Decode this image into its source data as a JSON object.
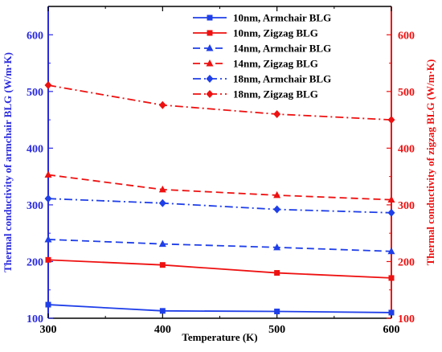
{
  "chart_data": {
    "type": "line",
    "x": [
      300,
      400,
      500,
      600
    ],
    "xlabel": "Temperature (K)",
    "ylabel_left": "Thermal conductivity of armchair BLG (W/m·K)",
    "ylabel_right": "Thermal conductivity of zigzag BLG (W/m·K)",
    "xlim": [
      300,
      600
    ],
    "ylim_left": [
      100,
      650
    ],
    "ylim_right": [
      100,
      650
    ],
    "x_ticks": [
      "300",
      "400",
      "500",
      "600"
    ],
    "y_ticks_left": [
      "100",
      "200",
      "300",
      "400",
      "500",
      "600"
    ],
    "y_ticks_right": [
      "100",
      "200",
      "300",
      "400",
      "500",
      "600"
    ],
    "grid": false,
    "legend_position": "top-right",
    "colors": {
      "left_axis": "#2a2adf",
      "right_axis": "#ee1111",
      "armchair": "#1f3fe8",
      "zigzag": "#ee1111"
    },
    "series": [
      {
        "name": "10nm, Armchair BLG",
        "axis": "left",
        "color": "#1f3fe8",
        "dash": "solid",
        "marker": "square",
        "values": [
          124,
          113,
          112,
          110
        ]
      },
      {
        "name": "10nm, Zigzag BLG",
        "axis": "right",
        "color": "#ee1111",
        "dash": "solid",
        "marker": "square",
        "values": [
          203,
          194,
          180,
          171
        ]
      },
      {
        "name": "14nm, Armchair BLG",
        "axis": "left",
        "color": "#1f3fe8",
        "dash": "dashed",
        "marker": "triangle",
        "values": [
          239,
          231,
          225,
          218
        ]
      },
      {
        "name": "14nm, Zigzag BLG",
        "axis": "right",
        "color": "#ee1111",
        "dash": "dashed",
        "marker": "triangle",
        "values": [
          353,
          327,
          317,
          309
        ]
      },
      {
        "name": "18nm, Armchair BLG",
        "axis": "left",
        "color": "#1f3fe8",
        "dash": "dashdot",
        "marker": "diamond",
        "values": [
          311,
          303,
          292,
          286
        ]
      },
      {
        "name": "18nm, Zigzag BLG",
        "axis": "right",
        "color": "#ee1111",
        "dash": "dashdot",
        "marker": "diamond",
        "values": [
          511,
          476,
          460,
          450
        ]
      }
    ]
  }
}
